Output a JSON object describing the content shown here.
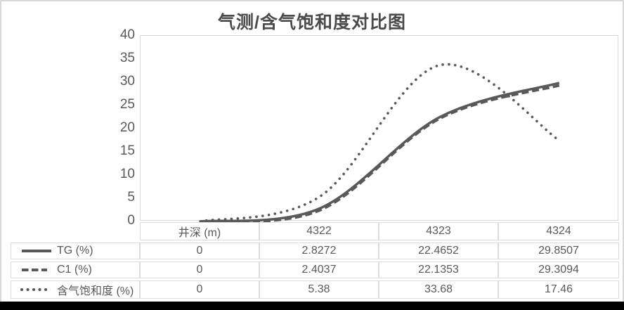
{
  "chart_data": {
    "type": "line",
    "title": "气测/含气饱和度对比图",
    "categories": [
      "井深 (m)",
      "4322",
      "4323",
      "4324"
    ],
    "series": [
      {
        "name": "TG (%)",
        "line_style": "solid",
        "values": [
          0,
          2.8272,
          22.4652,
          29.8507
        ]
      },
      {
        "name": "C1 (%)",
        "line_style": "dashed",
        "values": [
          0,
          2.4037,
          22.1353,
          29.3094
        ]
      },
      {
        "name": "含气饱和度 (%)",
        "line_style": "dotted",
        "values": [
          0,
          5.38,
          33.68,
          17.46
        ]
      }
    ],
    "y_axis": {
      "min": 0,
      "max": 40,
      "step": 5,
      "tick_labels": [
        "40",
        "35",
        "30",
        "25",
        "20",
        "15",
        "10",
        "5",
        "0"
      ]
    },
    "xlabel": "",
    "ylabel": "",
    "smoothed_lines": true,
    "grid": false,
    "legend_position": "data-table-left",
    "data_table_shown": true,
    "colors": {
      "line": "#595959",
      "plot_border": "#d9d9d9",
      "table_border": "#dcdcdc",
      "text": "#595959",
      "title": "#4a4a4a",
      "bottom_bar": "#010101"
    }
  }
}
